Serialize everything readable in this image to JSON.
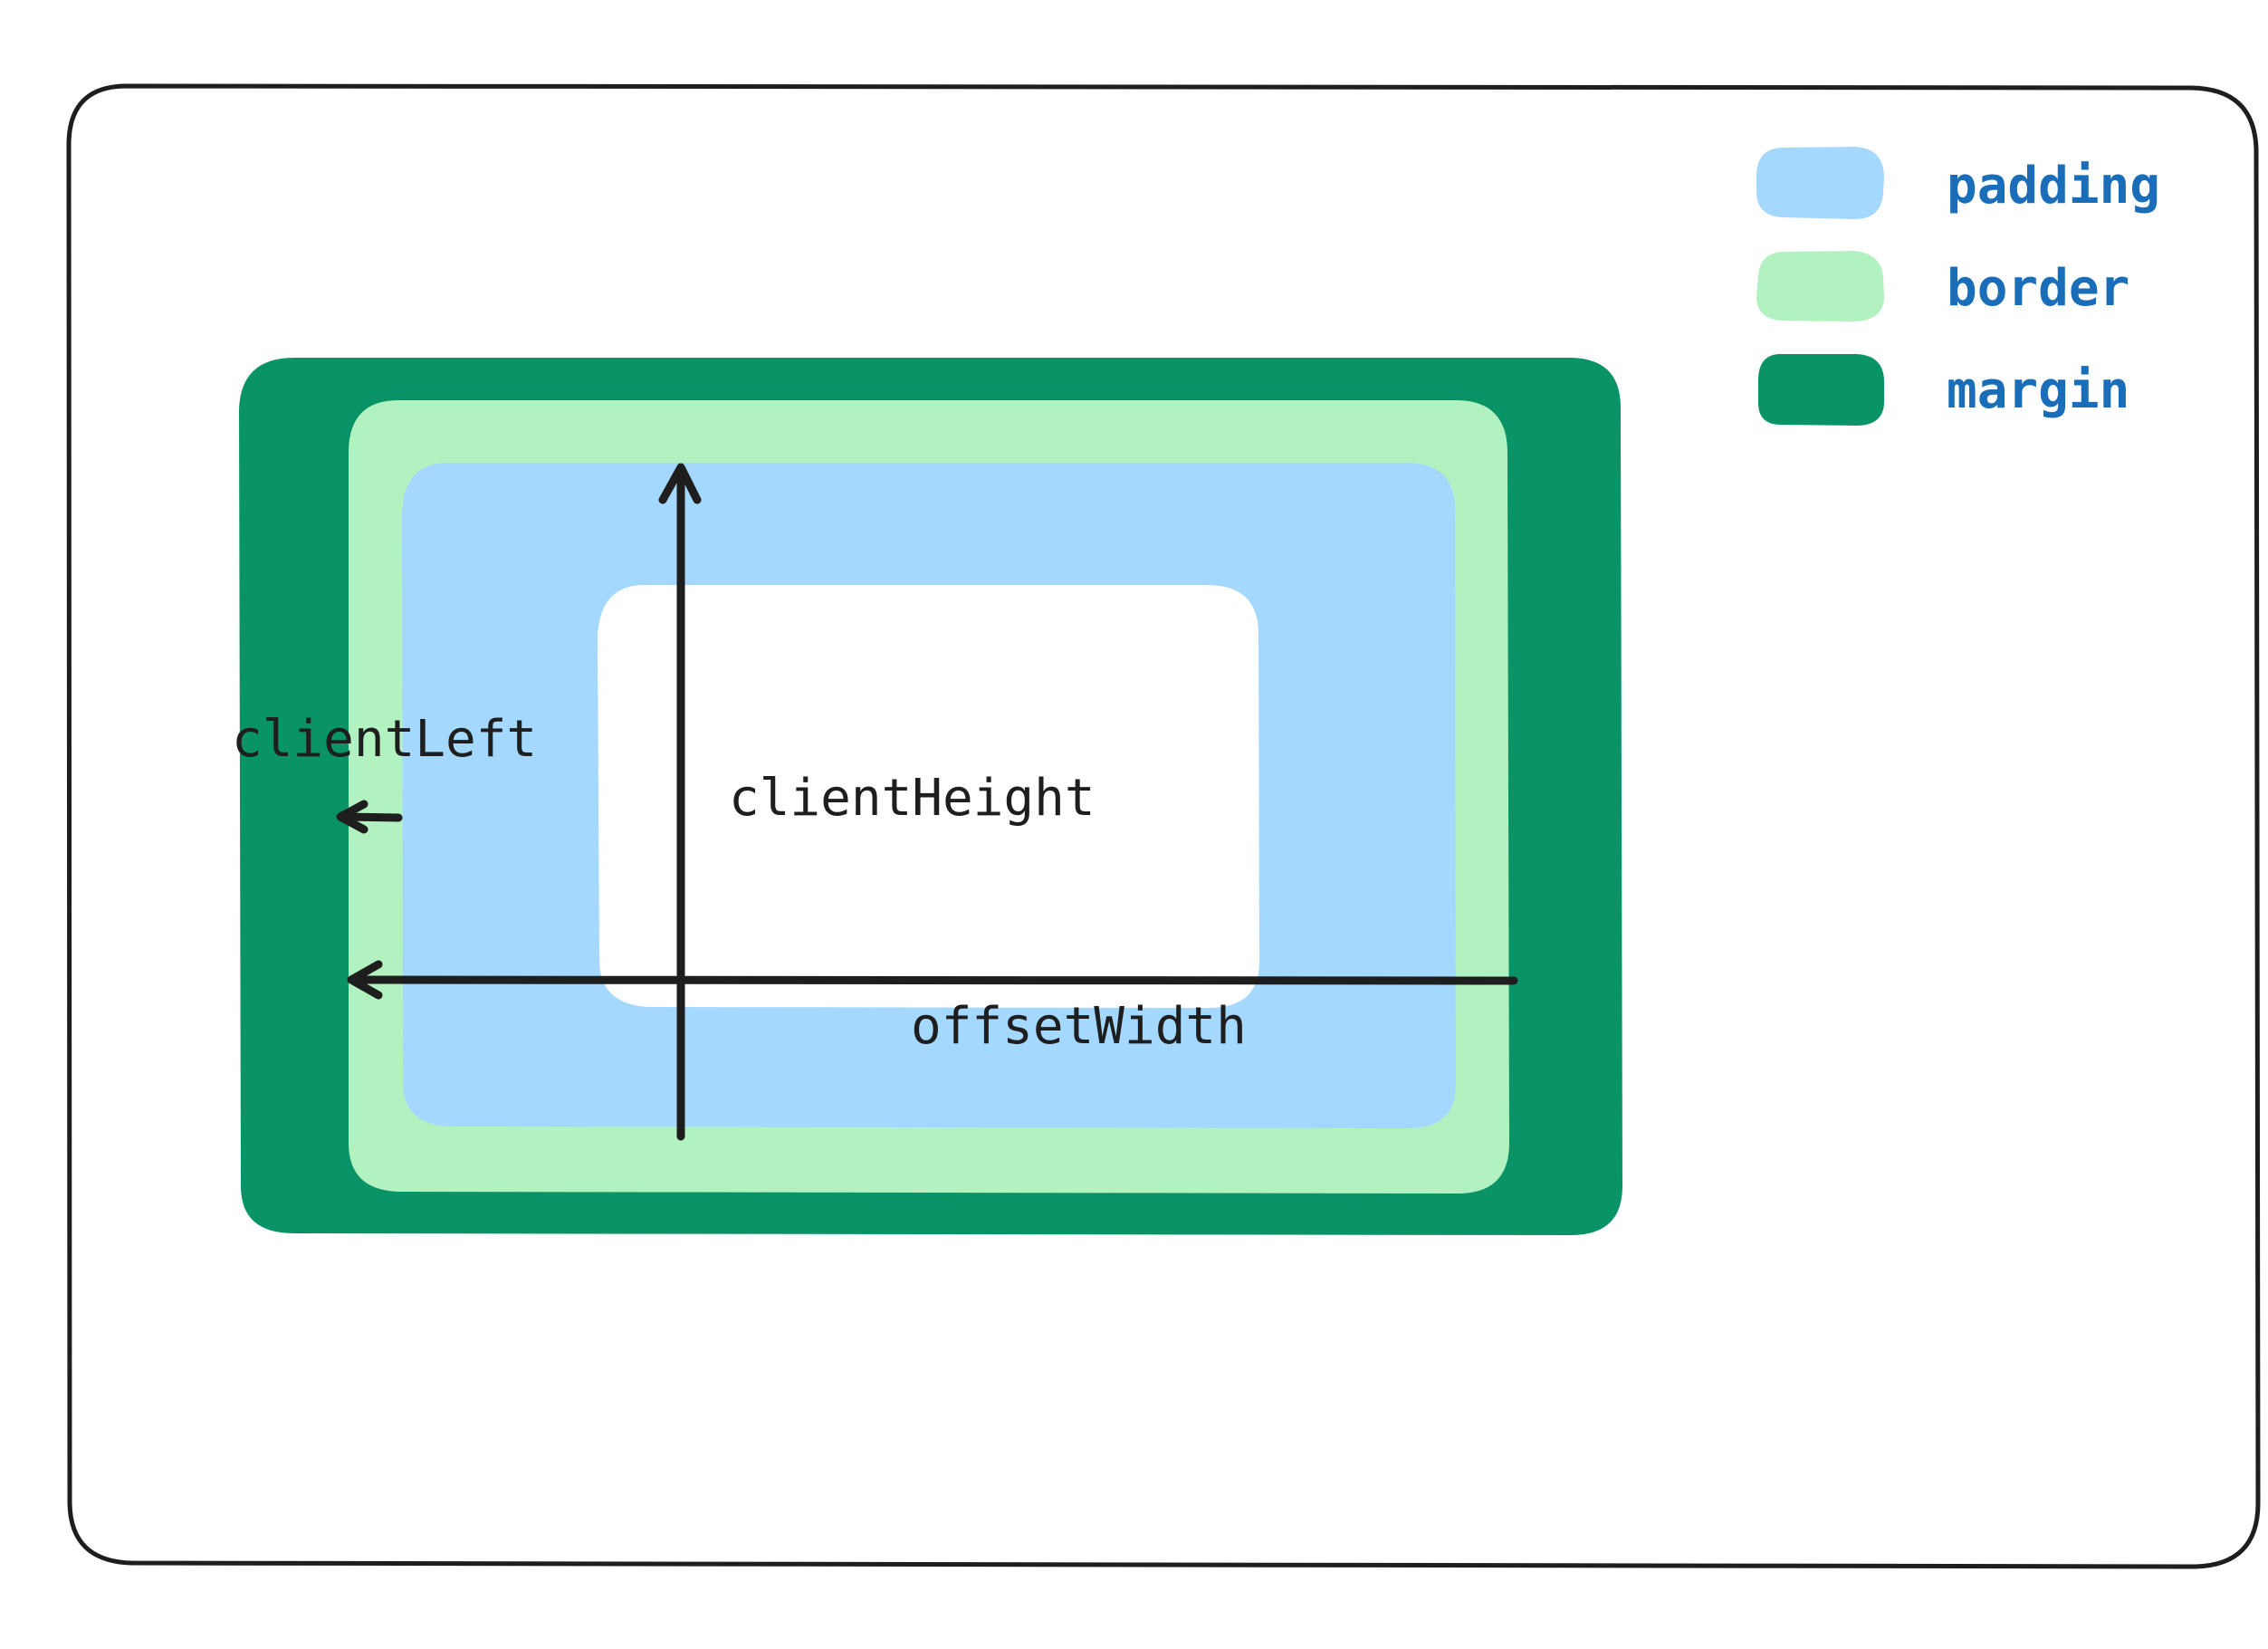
{
  "colors": {
    "frame_stroke": "#1e1e1e",
    "margin": "#0a9367",
    "border": "#b1f2c0",
    "padding": "#a5d8fe",
    "content": "#ffffff",
    "legend_text": "#1a6eb9",
    "label_text": "#1e1e1e",
    "arrow": "#1e1e1e"
  },
  "legend": {
    "items": [
      {
        "label": "padding",
        "color": "#a5d8fe"
      },
      {
        "label": "border",
        "color": "#b1f2c0"
      },
      {
        "label": "margin",
        "color": "#0a9367"
      }
    ]
  },
  "labels": {
    "client_left": "clientLeft",
    "client_height": "clientHeight",
    "offset_width": "offsetWidth"
  }
}
